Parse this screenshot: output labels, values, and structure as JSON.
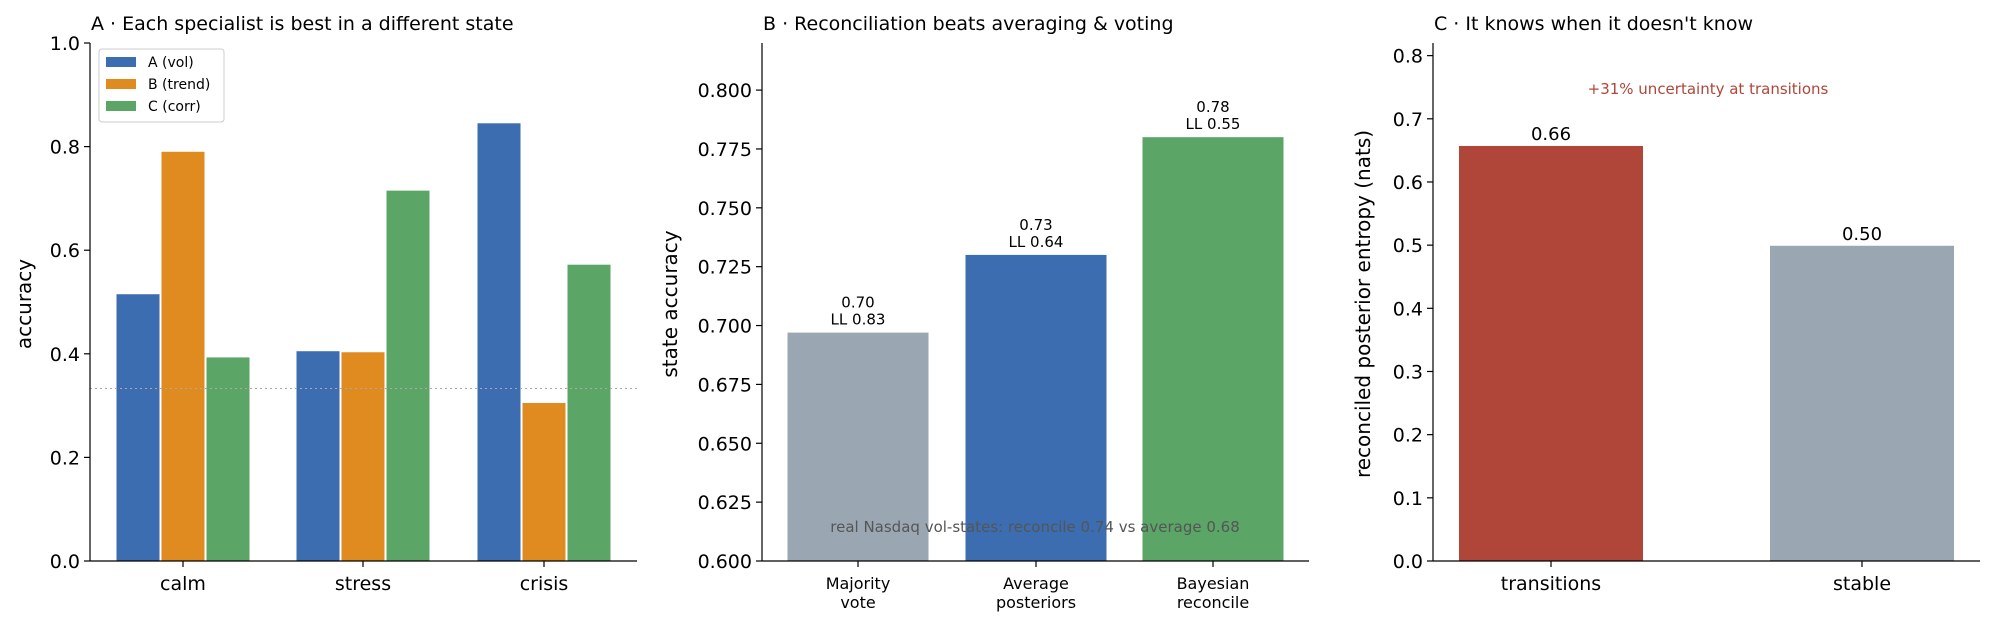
{
  "colors": {
    "blue": "#3b6db0",
    "orange": "#e08b1f",
    "green": "#5ba567",
    "gray": "#9aa7b3",
    "red": "#b0463a",
    "note_gray": "#555555",
    "chance_line": "#aaaaaa"
  },
  "chart_data": [
    {
      "type": "bar",
      "title": "A · Each specialist is best in a different state",
      "ylabel": "accuracy",
      "xlabel": "",
      "categories": [
        "calm",
        "stress",
        "crisis"
      ],
      "series": [
        {
          "name": "A (vol)",
          "color": "#3b6db0",
          "values": [
            0.515,
            0.405,
            0.845
          ]
        },
        {
          "name": "B (trend)",
          "color": "#e08b1f",
          "values": [
            0.79,
            0.403,
            0.305
          ]
        },
        {
          "name": "C (corr)",
          "color": "#5ba567",
          "values": [
            0.393,
            0.715,
            0.572
          ]
        }
      ],
      "ylim": [
        0,
        1.0
      ],
      "yticks": [
        "0.0",
        "0.2",
        "0.4",
        "0.6",
        "0.8",
        "1.0"
      ],
      "reference_line": 0.333,
      "legend_position": "top-left",
      "grid": false
    },
    {
      "type": "bar",
      "title": "B · Reconciliation beats averaging & voting",
      "ylabel": "state accuracy",
      "xlabel": "",
      "categories": [
        [
          "Majority",
          "vote"
        ],
        [
          "Average",
          "posteriors"
        ],
        [
          "Bayesian",
          "reconcile"
        ]
      ],
      "values": [
        0.697,
        0.73,
        0.78
      ],
      "colors": [
        "#9aa7b3",
        "#3b6db0",
        "#5ba567"
      ],
      "data_labels": [
        [
          "0.70",
          "LL 0.83"
        ],
        [
          "0.73",
          "LL 0.64"
        ],
        [
          "0.78",
          "LL 0.55"
        ]
      ],
      "ylim": [
        0.6,
        0.82
      ],
      "yticks": [
        "0.600",
        "0.625",
        "0.650",
        "0.675",
        "0.700",
        "0.725",
        "0.750",
        "0.775",
        "0.800"
      ],
      "annotation": "real Nasdaq vol-states:  reconcile 0.74  vs  average 0.68",
      "grid": false
    },
    {
      "type": "bar",
      "title": "C · It knows when it doesn't know",
      "ylabel": "reconciled posterior entropy (nats)",
      "xlabel": "",
      "categories": [
        "transitions",
        "stable"
      ],
      "values": [
        0.657,
        0.499
      ],
      "colors": [
        "#b0463a",
        "#9aa7b3"
      ],
      "data_labels": [
        "0.66",
        "0.50"
      ],
      "ylim": [
        0,
        0.82
      ],
      "yticks": [
        "0.0",
        "0.1",
        "0.2",
        "0.3",
        "0.4",
        "0.5",
        "0.6",
        "0.7",
        "0.8"
      ],
      "annotation": "+31% uncertainty at transitions",
      "grid": false
    }
  ]
}
